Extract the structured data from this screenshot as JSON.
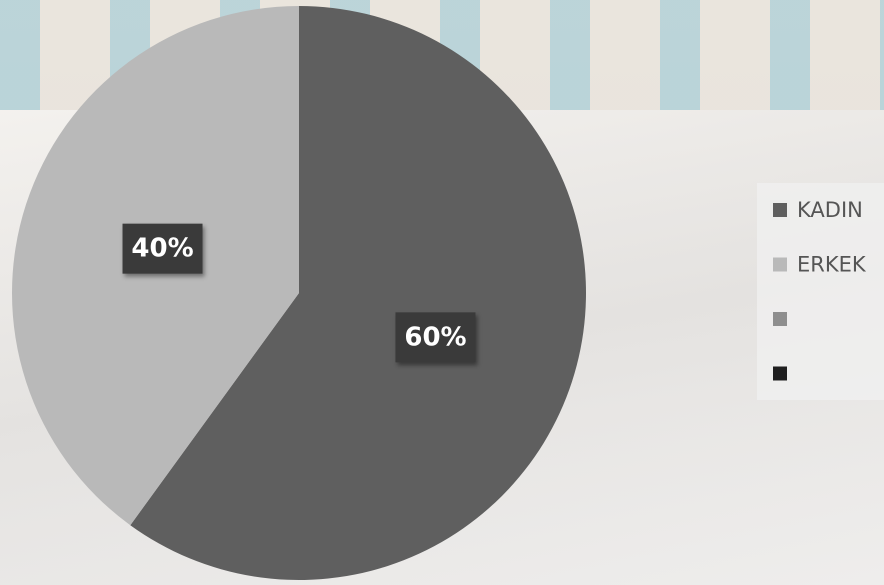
{
  "chart_data": {
    "type": "pie",
    "categories": [
      "KADIN",
      "ERKEK",
      null,
      null
    ],
    "values": [
      60,
      40,
      null,
      null
    ],
    "value_labels": [
      "60%",
      "40%",
      null,
      null
    ],
    "colors": [
      "#5f5f5f",
      "#b9b9b9",
      "#8e8e8e",
      "#1f1f1f"
    ],
    "legend": "right"
  }
}
